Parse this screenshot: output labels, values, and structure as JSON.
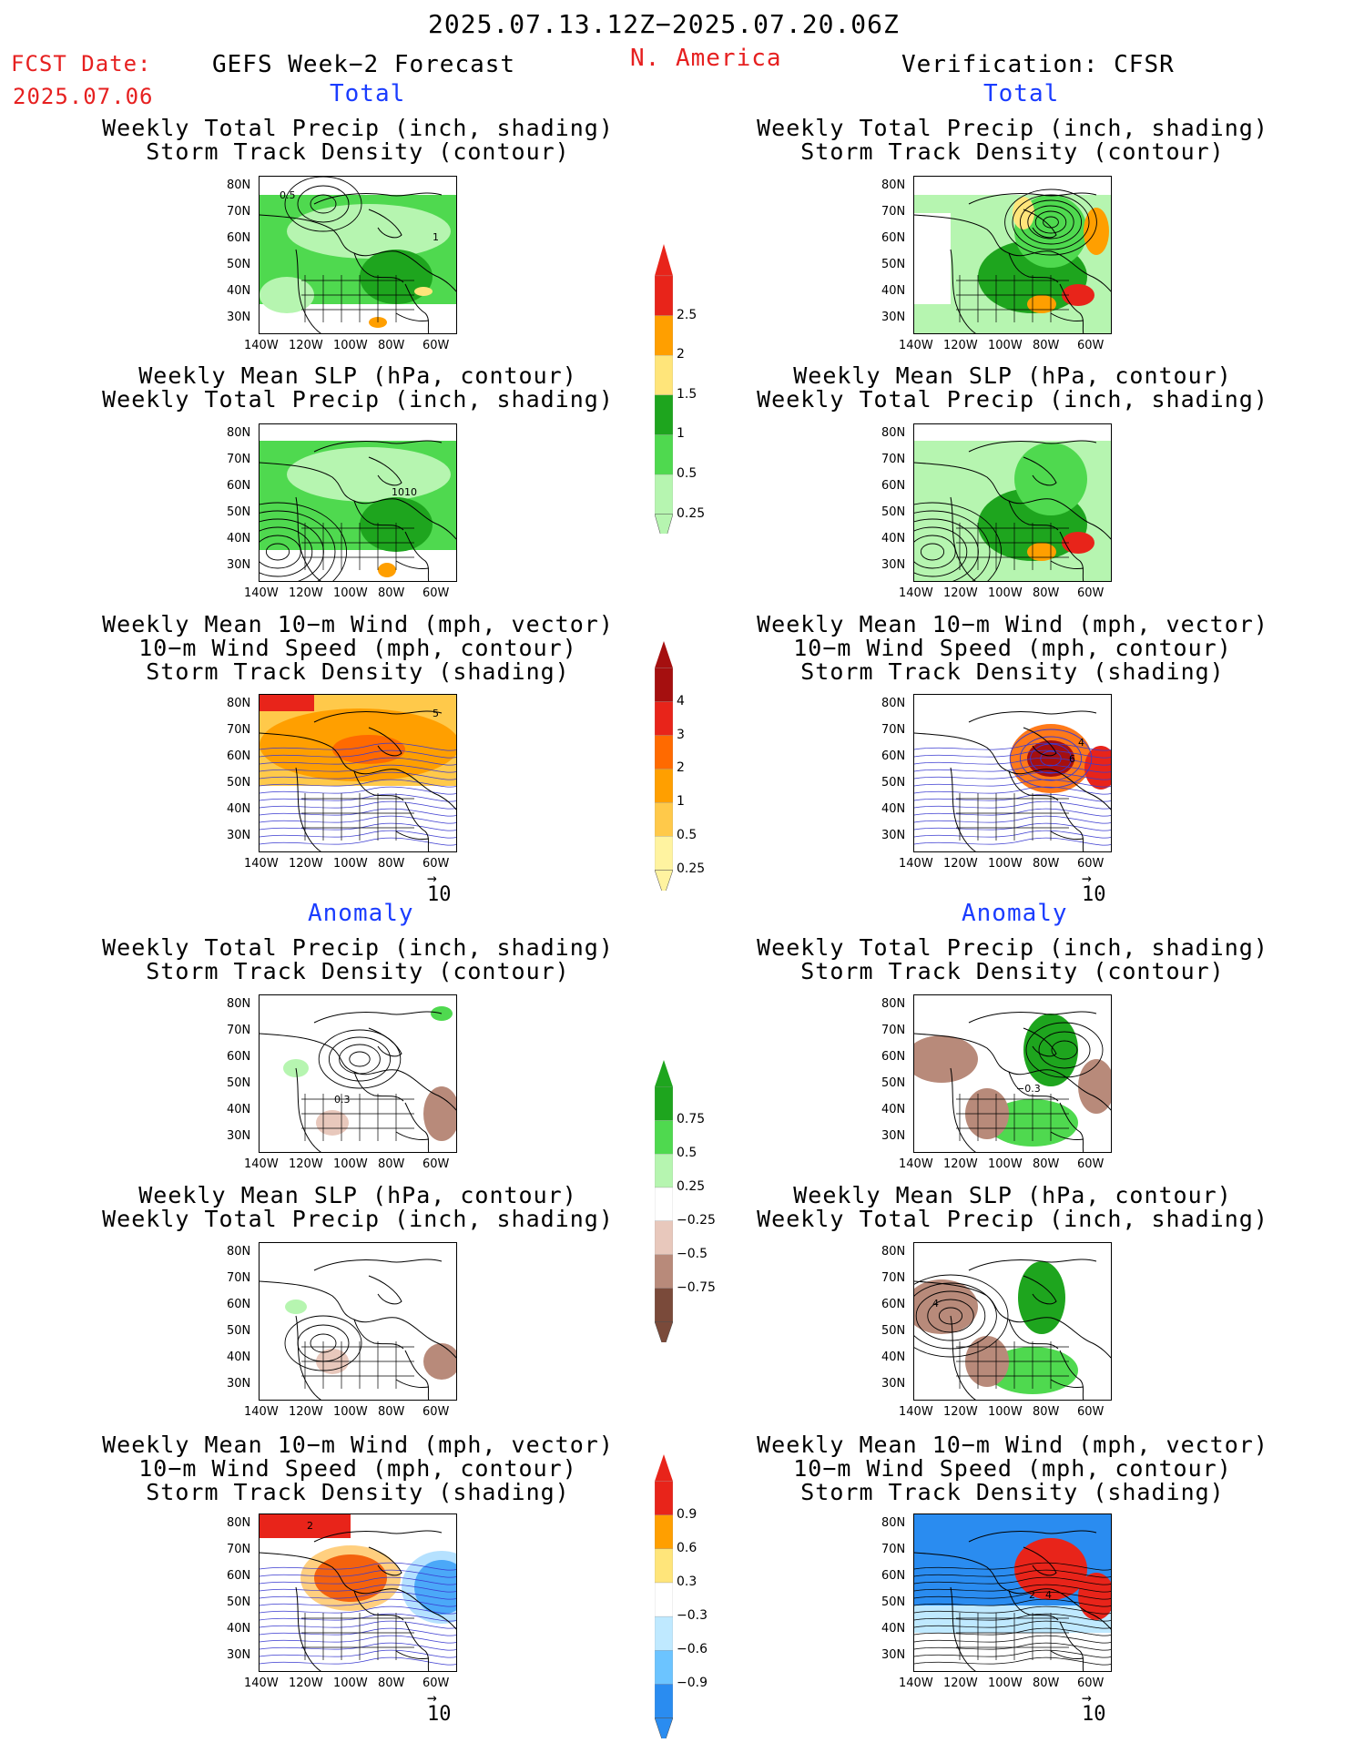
{
  "header": {
    "period": "2025.07.13.12Z−2025.07.20.06Z",
    "fcst_date_label": "FCST Date:",
    "fcst_date_value": "2025.07.06",
    "model_title": "GEFS Week−2 Forecast",
    "region": "N. America",
    "verification": "Verification: CFSR"
  },
  "sections": {
    "total": "Total",
    "anomaly": "Anomaly"
  },
  "panel_titles": {
    "precip_track": [
      "Weekly Total Precip (inch, shading)",
      "Storm Track Density (contour)"
    ],
    "slp_precip": [
      "Weekly Mean SLP (hPa, contour)",
      "Weekly Total Precip (inch, shading)"
    ],
    "wind_track": [
      "Weekly Mean 10−m Wind (mph, vector)",
      "10−m Wind Speed (mph, contour)",
      "Storm Track Density (shading)"
    ]
  },
  "lat_ticks": [
    "80N",
    "70N",
    "60N",
    "50N",
    "40N",
    "30N"
  ],
  "lon_ticks": [
    "140W",
    "120W",
    "100W",
    "80W",
    "60W"
  ],
  "vector_ref": "10",
  "contour_labels": {
    "fc_track_a": "0.5",
    "fc_track_b": "1",
    "fc_slp": "1010",
    "fc_wind": "5",
    "vf_wind_a": "4",
    "vf_wind_b": "6",
    "fc_anom_track": "0.3",
    "vf_anom_track": "−0.3",
    "vf_anom_slp": "4",
    "fc_anom_wind": "2",
    "vf_anom_wind_a": "2",
    "vf_anom_wind_b": "4"
  },
  "colorbars": {
    "precip_total": {
      "labels": [
        "2.5",
        "2",
        "1.5",
        "1",
        "0.5",
        "0.25"
      ],
      "colors": [
        "#e8241a",
        "#ff9f00",
        "#ffe57a",
        "#1ea51e",
        "#4fd94f",
        "#b6f5b0"
      ]
    },
    "track_total": {
      "labels": [
        "4",
        "3",
        "2",
        "1",
        "0.5",
        "0.25"
      ],
      "colors": [
        "#a50f0f",
        "#e8241a",
        "#ff6a00",
        "#ff9f00",
        "#ffc94a",
        "#fff3a0"
      ]
    },
    "precip_anom": {
      "labels": [
        "0.75",
        "0.5",
        "0.25",
        "−0.25",
        "−0.5",
        "−0.75"
      ],
      "colors": [
        "#1ea51e",
        "#4fd94f",
        "#b6f5b0",
        "#ffffff",
        "#e8c8bc",
        "#b88a7a",
        "#7a4a3a"
      ]
    },
    "track_anom": {
      "labels": [
        "0.9",
        "0.6",
        "0.3",
        "−0.3",
        "−0.6",
        "−0.9"
      ],
      "colors": [
        "#e8241a",
        "#ff9f00",
        "#ffe57a",
        "#ffffff",
        "#bfe9ff",
        "#6cc4ff",
        "#2a8cf0"
      ]
    }
  }
}
